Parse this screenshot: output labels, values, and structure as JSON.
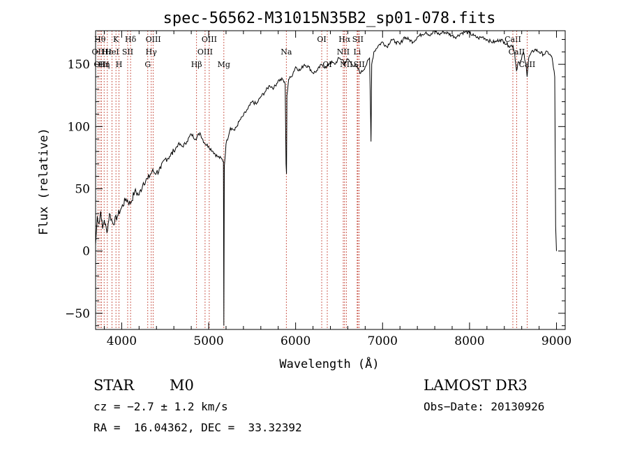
{
  "chart_data": {
    "type": "line",
    "title": "spec-56562-M31015N35B2_sp01-078.fits",
    "xlabel": "Wavelength (Å)",
    "ylabel": "Flux (relative)",
    "xlim": [
      3700,
      9100
    ],
    "ylim": [
      -63,
      177
    ],
    "xticks": [
      4000,
      5000,
      6000,
      7000,
      8000,
      9000
    ],
    "xtick_labels": [
      "4000",
      "5000",
      "6000",
      "7000",
      "8000",
      "9000"
    ],
    "yticks": [
      -50,
      0,
      50,
      100,
      150
    ],
    "ytick_labels": [
      "−50",
      "0",
      "50",
      "100",
      "150"
    ],
    "grid": false,
    "series": [
      {
        "x": [
          3700,
          3720,
          3740,
          3760,
          3780,
          3800,
          3830,
          3860,
          3900,
          3950,
          4000,
          4050,
          4100,
          4150,
          4200,
          4250,
          4300,
          4350,
          4400,
          4450,
          4500,
          4550,
          4600,
          4650,
          4700,
          4750,
          4800,
          4850,
          4900,
          4950,
          5000,
          5050,
          5100,
          5150,
          5170,
          5175,
          5180,
          5200,
          5250,
          5300,
          5350,
          5400,
          5450,
          5500,
          5550,
          5600,
          5650,
          5700,
          5750,
          5800,
          5850,
          5880,
          5890,
          5895,
          5900,
          5920,
          5950,
          6000,
          6050,
          6100,
          6150,
          6200,
          6250,
          6300,
          6350,
          6400,
          6450,
          6500,
          6550,
          6560,
          6570,
          6600,
          6650,
          6700,
          6750,
          6800,
          6850,
          6860,
          6867,
          6875,
          6900,
          6950,
          7000,
          7050,
          7100,
          7150,
          7200,
          7250,
          7300,
          7350,
          7400,
          7450,
          7500,
          7550,
          7600,
          7650,
          7700,
          7750,
          7800,
          7850,
          7900,
          7950,
          8000,
          8050,
          8100,
          8150,
          8200,
          8250,
          8300,
          8350,
          8400,
          8450,
          8500,
          8520,
          8540,
          8560,
          8580,
          8620,
          8650,
          8662,
          8680,
          8700,
          8750,
          8800,
          8850,
          8900,
          8950,
          8980,
          8990,
          9000
        ],
        "y": [
          5,
          28,
          22,
          32,
          18,
          25,
          15,
          30,
          22,
          28,
          35,
          42,
          38,
          48,
          45,
          55,
          58,
          64,
          63,
          66,
          74,
          76,
          80,
          86,
          84,
          88,
          94,
          90,
          95,
          87,
          84,
          80,
          76,
          74,
          72,
          -60,
          68,
          86,
          99,
          97,
          104,
          109,
          114,
          120,
          118,
          124,
          128,
          133,
          131,
          137,
          138,
          134,
          70,
          62,
          125,
          138,
          140,
          148,
          145,
          150,
          148,
          143,
          145,
          150,
          147,
          152,
          150,
          155,
          153,
          150,
          152,
          154,
          150,
          148,
          143,
          148,
          155,
          120,
          88,
          150,
          160,
          165,
          168,
          164,
          170,
          168,
          166,
          172,
          170,
          168,
          172,
          174,
          176,
          173,
          177,
          174,
          176,
          175,
          173,
          172,
          175,
          176,
          175,
          173,
          171,
          172,
          170,
          168,
          168,
          170,
          168,
          165,
          165,
          158,
          145,
          152,
          150,
          160,
          150,
          140,
          155,
          158,
          162,
          160,
          158,
          160,
          155,
          140,
          20,
          0
        ]
      }
    ],
    "lines": [
      {
        "x": 3750,
        "label": "Hθ",
        "row": 0
      },
      {
        "x": 3727,
        "label": "OII",
        "row": 1
      },
      {
        "x": 3768,
        "label": "OIII",
        "row": 2
      },
      {
        "x": 3798,
        "label": "Hη",
        "row": 2
      },
      {
        "x": 3835,
        "label": "Hε",
        "row": 1
      },
      {
        "x": 3889,
        "label": "HeI",
        "row": 1
      },
      {
        "x": 3934,
        "label": "K",
        "row": 0
      },
      {
        "x": 3969,
        "label": "H",
        "row": 2
      },
      {
        "x": 4069,
        "label": "SII",
        "row": 1
      },
      {
        "x": 4102,
        "label": "Hδ",
        "row": 0
      },
      {
        "x": 4300,
        "label": "G",
        "row": 2
      },
      {
        "x": 4340,
        "label": "Hγ",
        "row": 1
      },
      {
        "x": 4363,
        "label": "OIII",
        "row": 0
      },
      {
        "x": 4861,
        "label": "Hβ",
        "row": 2
      },
      {
        "x": 4959,
        "label": "OIII",
        "row": 1
      },
      {
        "x": 5007,
        "label": "OIII",
        "row": 0
      },
      {
        "x": 5175,
        "label": "Mg",
        "row": 2
      },
      {
        "x": 5893,
        "label": "Na",
        "row": 1
      },
      {
        "x": 6300,
        "label": "OI",
        "row": 0
      },
      {
        "x": 6364,
        "label": "OI",
        "row": 2
      },
      {
        "x": 6548,
        "label": "NII",
        "row": 1
      },
      {
        "x": 6563,
        "label": "Hα",
        "row": 0
      },
      {
        "x": 6583,
        "label": "NII",
        "row": 2
      },
      {
        "x": 6708,
        "label": "Li",
        "row": 1
      },
      {
        "x": 6716,
        "label": "SII",
        "row": 0
      },
      {
        "x": 6731,
        "label": "SII",
        "row": 2
      },
      {
        "x": 8498,
        "label": "CaII",
        "row": 0
      },
      {
        "x": 8542,
        "label": "CaII",
        "row": 1
      },
      {
        "x": 8662,
        "label": "CaII",
        "row": 2
      }
    ]
  },
  "info": {
    "object_class": "STAR",
    "subclass": "M0",
    "survey": "LAMOST DR3",
    "cz": "cz = −2.7 ± 1.2 km/s",
    "obs_date": "Obs−Date: 20130926",
    "coords": "RA =  16.04362, DEC =  33.32392"
  },
  "colors": {
    "spectrum": "#000000",
    "line_markers": "#c0392b",
    "axes": "#000000"
  }
}
